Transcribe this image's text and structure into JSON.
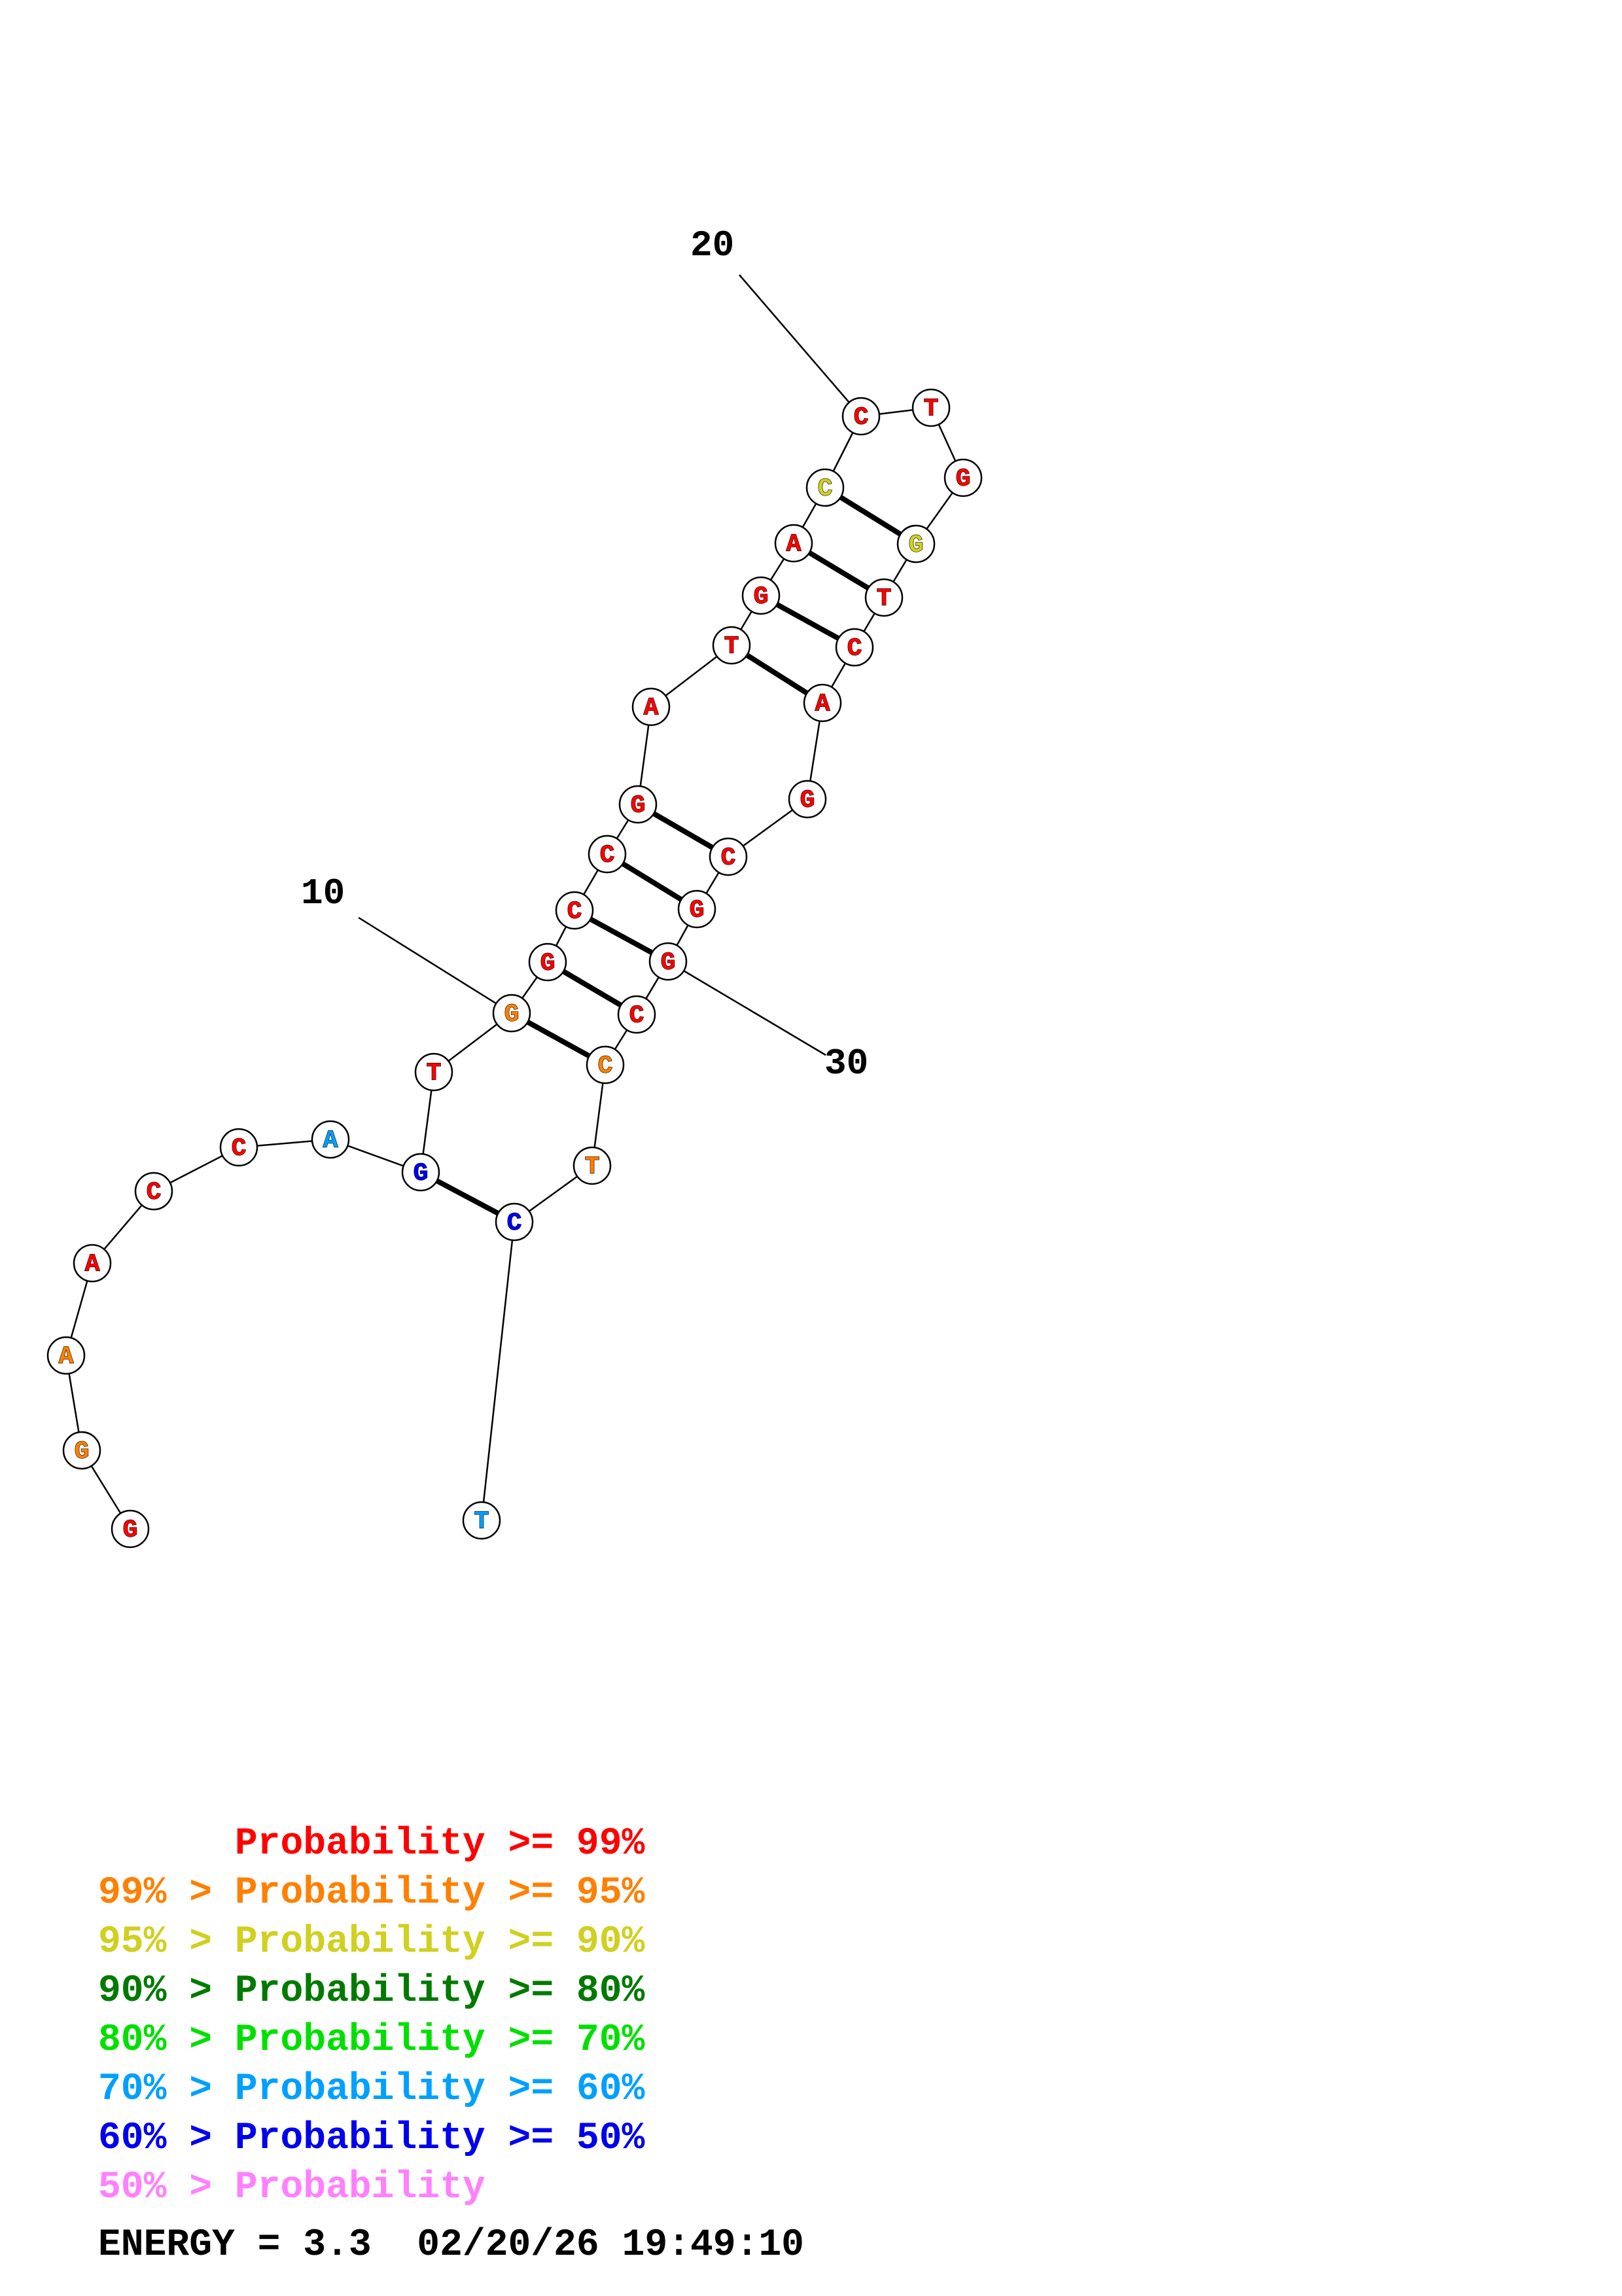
{
  "colors": {
    "p99": "#ff0000",
    "p95": "#ff8000",
    "p90": "#d0d020",
    "p80": "#007a00",
    "p70": "#00e000",
    "p60": "#00a0ff",
    "p50": "#0000ee",
    "low": "#ff80ff"
  },
  "sequence": [
    {
      "n": 1,
      "base": "G",
      "prob": "p99"
    },
    {
      "n": 2,
      "base": "G",
      "prob": "p95"
    },
    {
      "n": 3,
      "base": "A",
      "prob": "p95"
    },
    {
      "n": 4,
      "base": "A",
      "prob": "p99"
    },
    {
      "n": 5,
      "base": "C",
      "prob": "p99"
    },
    {
      "n": 6,
      "base": "C",
      "prob": "p99"
    },
    {
      "n": 7,
      "base": "A",
      "prob": "p60"
    },
    {
      "n": 8,
      "base": "G",
      "prob": "p50"
    },
    {
      "n": 9,
      "base": "T",
      "prob": "p99"
    },
    {
      "n": 10,
      "base": "G",
      "prob": "p95"
    },
    {
      "n": 11,
      "base": "G",
      "prob": "p99"
    },
    {
      "n": 12,
      "base": "C",
      "prob": "p99"
    },
    {
      "n": 13,
      "base": "C",
      "prob": "p99"
    },
    {
      "n": 14,
      "base": "G",
      "prob": "p99"
    },
    {
      "n": 15,
      "base": "A",
      "prob": "p99"
    },
    {
      "n": 16,
      "base": "T",
      "prob": "p99"
    },
    {
      "n": 17,
      "base": "G",
      "prob": "p99"
    },
    {
      "n": 18,
      "base": "A",
      "prob": "p99"
    },
    {
      "n": 19,
      "base": "C",
      "prob": "p90"
    },
    {
      "n": 20,
      "base": "C",
      "prob": "p99"
    },
    {
      "n": 21,
      "base": "T",
      "prob": "p99"
    },
    {
      "n": 22,
      "base": "G",
      "prob": "p99"
    },
    {
      "n": 23,
      "base": "G",
      "prob": "p90"
    },
    {
      "n": 24,
      "base": "T",
      "prob": "p99"
    },
    {
      "n": 25,
      "base": "C",
      "prob": "p99"
    },
    {
      "n": 26,
      "base": "A",
      "prob": "p99"
    },
    {
      "n": 27,
      "base": "G",
      "prob": "p99"
    },
    {
      "n": 28,
      "base": "C",
      "prob": "p99"
    },
    {
      "n": 29,
      "base": "G",
      "prob": "p99"
    },
    {
      "n": 30,
      "base": "G",
      "prob": "p99"
    },
    {
      "n": 31,
      "base": "C",
      "prob": "p99"
    },
    {
      "n": 32,
      "base": "C",
      "prob": "p95"
    },
    {
      "n": 33,
      "base": "T",
      "prob": "p95"
    },
    {
      "n": 34,
      "base": "C",
      "prob": "p50"
    },
    {
      "n": 35,
      "base": "T",
      "prob": "p60"
    }
  ],
  "pairs": [
    [
      8,
      34
    ],
    [
      10,
      32
    ],
    [
      11,
      31
    ],
    [
      12,
      30
    ],
    [
      13,
      29
    ],
    [
      14,
      28
    ],
    [
      16,
      26
    ],
    [
      17,
      25
    ],
    [
      18,
      24
    ],
    [
      19,
      23
    ]
  ],
  "position_labels": [
    {
      "n": 10,
      "text": "10"
    },
    {
      "n": 20,
      "text": "20"
    },
    {
      "n": 30,
      "text": "30"
    }
  ],
  "legend": [
    {
      "prefix": "",
      "label": "Probability >= 99%",
      "color_key": "p99"
    },
    {
      "prefix": "99% > ",
      "label": "Probability >= 95%",
      "color_key": "p95"
    },
    {
      "prefix": "95% > ",
      "label": "Probability >= 90%",
      "color_key": "p90"
    },
    {
      "prefix": "90% > ",
      "label": "Probability >= 80%",
      "color_key": "p80"
    },
    {
      "prefix": "80% > ",
      "label": "Probability >= 70%",
      "color_key": "p70"
    },
    {
      "prefix": "70% > ",
      "label": "Probability >= 60%",
      "color_key": "p60"
    },
    {
      "prefix": "60% > ",
      "label": "Probability >= 50%",
      "color_key": "p50"
    },
    {
      "prefix": "50% > ",
      "label": "Probability",
      "color_key": "low"
    }
  ],
  "footer": {
    "energy": "ENERGY = 3.3  02/20/26 19:49:10"
  }
}
